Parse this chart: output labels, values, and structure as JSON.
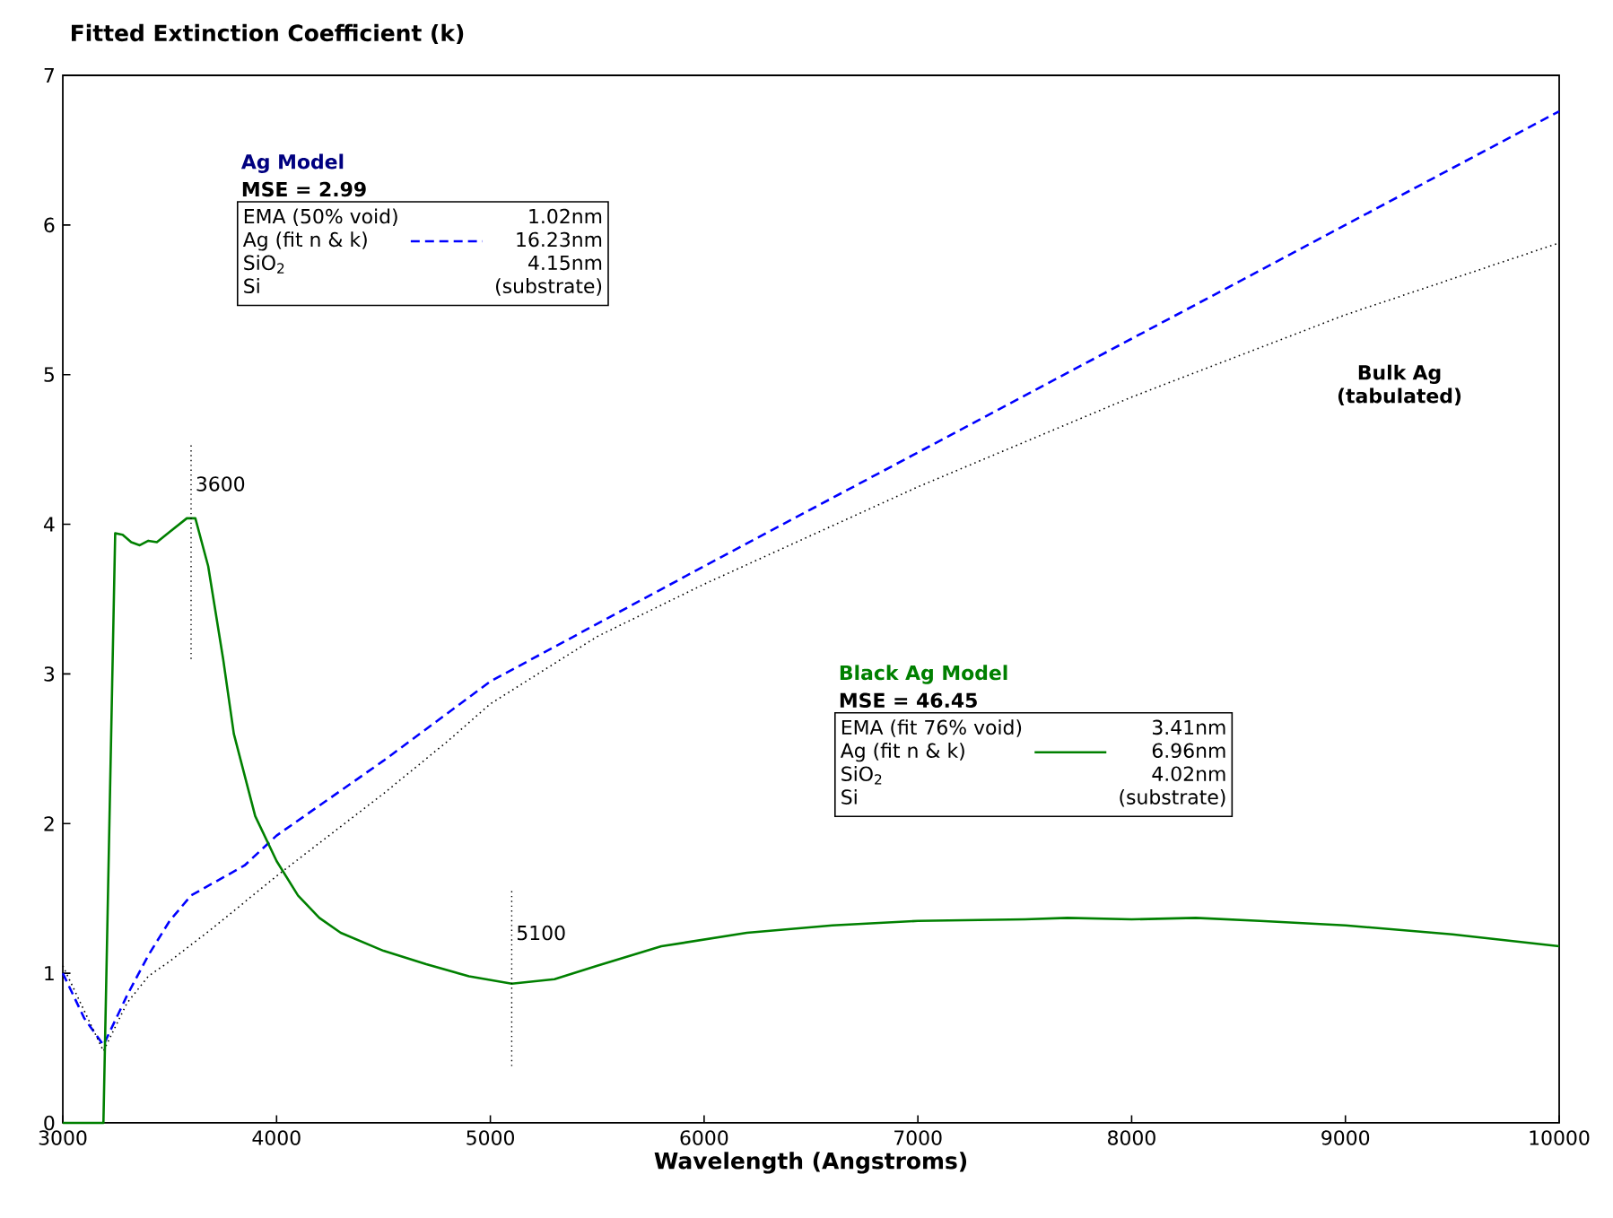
{
  "chart_data": {
    "type": "line",
    "title": "Fitted Extinction Coefficient (k)",
    "xlabel": "Wavelength (Angstroms)",
    "xlim": [
      3000,
      10000
    ],
    "xticks": [
      3000,
      4000,
      5000,
      6000,
      7000,
      8000,
      9000,
      10000
    ],
    "ylim": [
      0,
      7
    ],
    "yticks": [
      0,
      1,
      2,
      3,
      4,
      5,
      6,
      7
    ],
    "grid": false,
    "ref_lines": [
      {
        "axis": "x",
        "value": 3600,
        "label": "3600",
        "color": "#000000",
        "line_style": "dotted"
      },
      {
        "axis": "x",
        "value": 5100,
        "label": "5100",
        "color": "#000000",
        "line_style": "dotted"
      }
    ],
    "series": [
      {
        "color": "#0000ff",
        "line_style": "dashed",
        "x": [
          3000,
          3100,
          3190,
          3300,
          3400,
          3500,
          3600,
          3700,
          3850,
          4000,
          4500,
          5000,
          6000,
          7000,
          8000,
          9000,
          10000
        ],
        "values": [
          1.0,
          0.7,
          0.52,
          0.85,
          1.12,
          1.35,
          1.52,
          1.6,
          1.72,
          1.92,
          2.42,
          2.95,
          3.72,
          4.48,
          5.24,
          6.0,
          6.76
        ]
      },
      {
        "color": "#000000",
        "line_style": "dotted",
        "x": [
          3000,
          3190,
          3300,
          3400,
          3500,
          3700,
          4000,
          4500,
          4800,
          5000,
          5500,
          6000,
          7000,
          8000,
          9000,
          10000
        ],
        "values": [
          1.05,
          0.48,
          0.8,
          0.98,
          1.08,
          1.3,
          1.65,
          2.2,
          2.55,
          2.8,
          3.25,
          3.6,
          4.25,
          4.85,
          5.4,
          5.88
        ]
      },
      {
        "color": "#008000",
        "line_style": "solid",
        "x": [
          3000,
          3190,
          3245,
          3280,
          3320,
          3360,
          3400,
          3440,
          3500,
          3580,
          3620,
          3680,
          3750,
          3800,
          3900,
          4000,
          4100,
          4200,
          4300,
          4500,
          4700,
          4900,
          5100,
          5300,
          5500,
          5800,
          6200,
          6600,
          7000,
          7500,
          7700,
          8000,
          8300,
          8600,
          9000,
          9500,
          10000
        ],
        "values": [
          0,
          0,
          3.94,
          3.93,
          3.88,
          3.86,
          3.89,
          3.88,
          3.95,
          4.04,
          4.04,
          3.72,
          3.1,
          2.6,
          2.05,
          1.75,
          1.52,
          1.37,
          1.27,
          1.15,
          1.06,
          0.98,
          0.93,
          0.96,
          1.05,
          1.18,
          1.27,
          1.32,
          1.35,
          1.36,
          1.37,
          1.36,
          1.37,
          1.35,
          1.32,
          1.26,
          1.18
        ]
      }
    ],
    "annotations": [
      "Ag Model",
      "MSE = 2.99",
      "EMA (50% void)",
      "1.02nm",
      "Ag (fit n & k)",
      "16.23nm",
      "SiO$_{2}$",
      "4.15nm",
      "Si",
      "(substrate)",
      "Black Ag Model",
      "MSE = 46.45",
      "EMA (fit 76% void)",
      "3.41nm",
      "Ag (fit n & k)",
      "6.96nm",
      "SiO$_{2}$",
      "4.02nm",
      "Si",
      "(substrate)",
      "Bulk Ag (tabulated)"
    ]
  }
}
